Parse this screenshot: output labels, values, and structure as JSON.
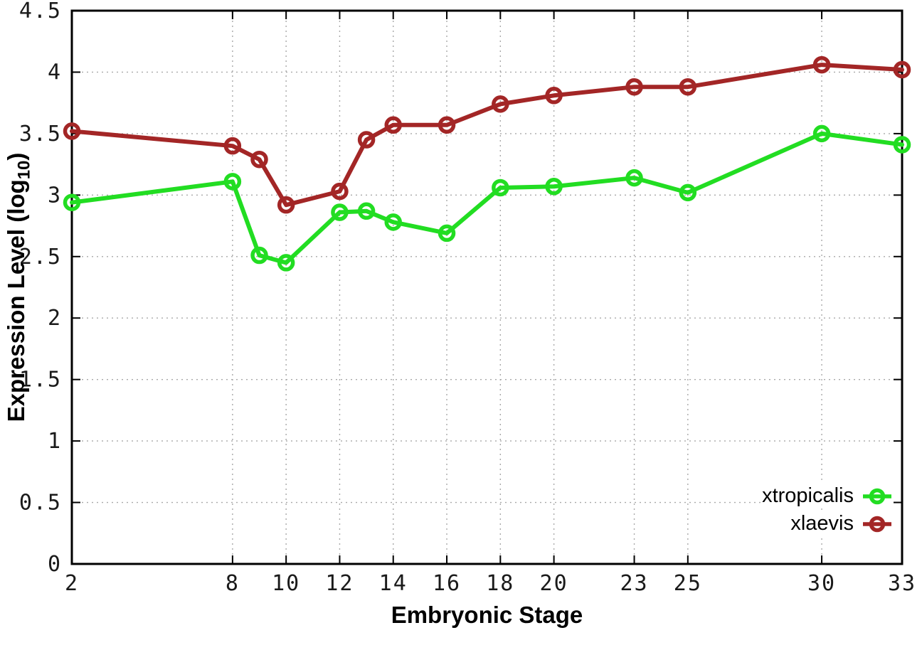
{
  "chart_data": {
    "type": "line",
    "title": "",
    "xlabel": "Embryonic Stage",
    "ylabel": "Expression Level (log10)",
    "ylabel_parts": {
      "prefix": "Expression Level (log",
      "sub": "10",
      "suffix": ")"
    },
    "x": [
      2,
      8,
      9,
      10,
      12,
      13,
      14,
      16,
      18,
      20,
      23,
      25,
      30,
      33
    ],
    "series": [
      {
        "name": "xtropicalis",
        "color": "#22DD22",
        "values": [
          2.94,
          3.11,
          2.51,
          2.45,
          2.86,
          2.87,
          2.78,
          2.69,
          3.06,
          3.07,
          3.14,
          3.02,
          3.5,
          3.41
        ]
      },
      {
        "name": "xlaevis",
        "color": "#A32626",
        "values": [
          3.52,
          3.4,
          3.29,
          2.92,
          3.03,
          3.45,
          3.57,
          3.57,
          3.74,
          3.81,
          3.88,
          3.88,
          4.06,
          4.02
        ]
      }
    ],
    "xlim": [
      2,
      33
    ],
    "ylim": [
      0,
      4.5
    ],
    "xticks": {
      "values": [
        2,
        8,
        10,
        12,
        14,
        16,
        18,
        20,
        23,
        25,
        30,
        33
      ],
      "labels": [
        "2",
        "8",
        "10",
        "12",
        "14",
        "16",
        "18",
        "20",
        "23",
        "25",
        "30",
        "33"
      ]
    },
    "yticks": {
      "values": [
        0,
        0.5,
        1,
        1.5,
        2,
        2.5,
        3,
        3.5,
        4,
        4.5
      ],
      "labels": [
        "0",
        "0.5",
        "1",
        "1.5",
        "2",
        "2.5",
        "3",
        "3.5",
        "4",
        "4.5"
      ]
    },
    "grid": true,
    "legend_position": "bottom-right",
    "colors": {
      "grid": "#A8A8A8",
      "axis": "#000000",
      "background": "#FFFFFF",
      "tick_text": "#1a1a1a"
    }
  }
}
